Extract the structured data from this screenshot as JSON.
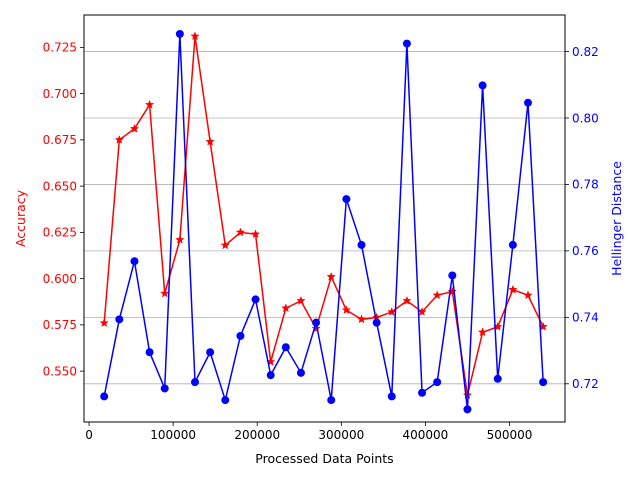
{
  "chart_data": {
    "type": "line",
    "xlabel": "Processed Data Points",
    "ylabel_left": "Accuracy",
    "ylabel_right": "Hellinger Distance",
    "xlim": [
      -6000,
      566000
    ],
    "ylim_left": [
      0.5225,
      0.7425
    ],
    "ylim_right": [
      0.7085,
      0.831
    ],
    "x_ticks": [
      0,
      100000,
      200000,
      300000,
      400000,
      500000
    ],
    "x_tick_labels": [
      "0",
      "100000",
      "200000",
      "300000",
      "400000",
      "500000"
    ],
    "left_ticks": [
      0.55,
      0.575,
      0.6,
      0.625,
      0.65,
      0.675,
      0.7,
      0.725
    ],
    "left_tick_labels": [
      "0.550",
      "0.575",
      "0.600",
      "0.625",
      "0.650",
      "0.675",
      "0.700",
      "0.725"
    ],
    "right_ticks": [
      0.72,
      0.74,
      0.76,
      0.78,
      0.8,
      0.82
    ],
    "right_tick_labels": [
      "0.72",
      "0.74",
      "0.76",
      "0.78",
      "0.80",
      "0.82"
    ],
    "grid": "horizontal lines at right-axis ticks",
    "x": [
      18000,
      36000,
      54000,
      72000,
      90000,
      108000,
      126000,
      144000,
      162000,
      180000,
      198000,
      216000,
      234000,
      252000,
      270000,
      288000,
      306000,
      324000,
      342000,
      360000,
      378000,
      396000,
      414000,
      432000,
      450000,
      468000,
      486000,
      504000,
      522000,
      540000
    ],
    "series": [
      {
        "axis": "left",
        "color": "#ff0000",
        "marker": "star",
        "values": [
          0.576,
          0.675,
          0.681,
          0.694,
          0.592,
          0.621,
          0.731,
          0.674,
          0.618,
          0.625,
          0.624,
          0.555,
          0.584,
          0.588,
          0.573,
          0.601,
          0.583,
          0.578,
          0.579,
          0.582,
          0.588,
          0.582,
          0.591,
          0.593,
          0.537,
          0.571,
          0.574,
          0.594,
          0.591,
          0.574
        ]
      },
      {
        "axis": "right",
        "color": "#0000ff",
        "marker": "circle",
        "values": [
          0.7162,
          0.7394,
          0.7569,
          0.7295,
          0.7186,
          0.8253,
          0.7205,
          0.7295,
          0.7151,
          0.7344,
          0.7454,
          0.7226,
          0.731,
          0.7233,
          0.7384,
          0.7151,
          0.7756,
          0.7618,
          0.7384,
          0.7162,
          0.8224,
          0.7173,
          0.7205,
          0.7526,
          0.7123,
          0.8098,
          0.7215,
          0.7618,
          0.8046,
          0.7205
        ]
      }
    ]
  }
}
